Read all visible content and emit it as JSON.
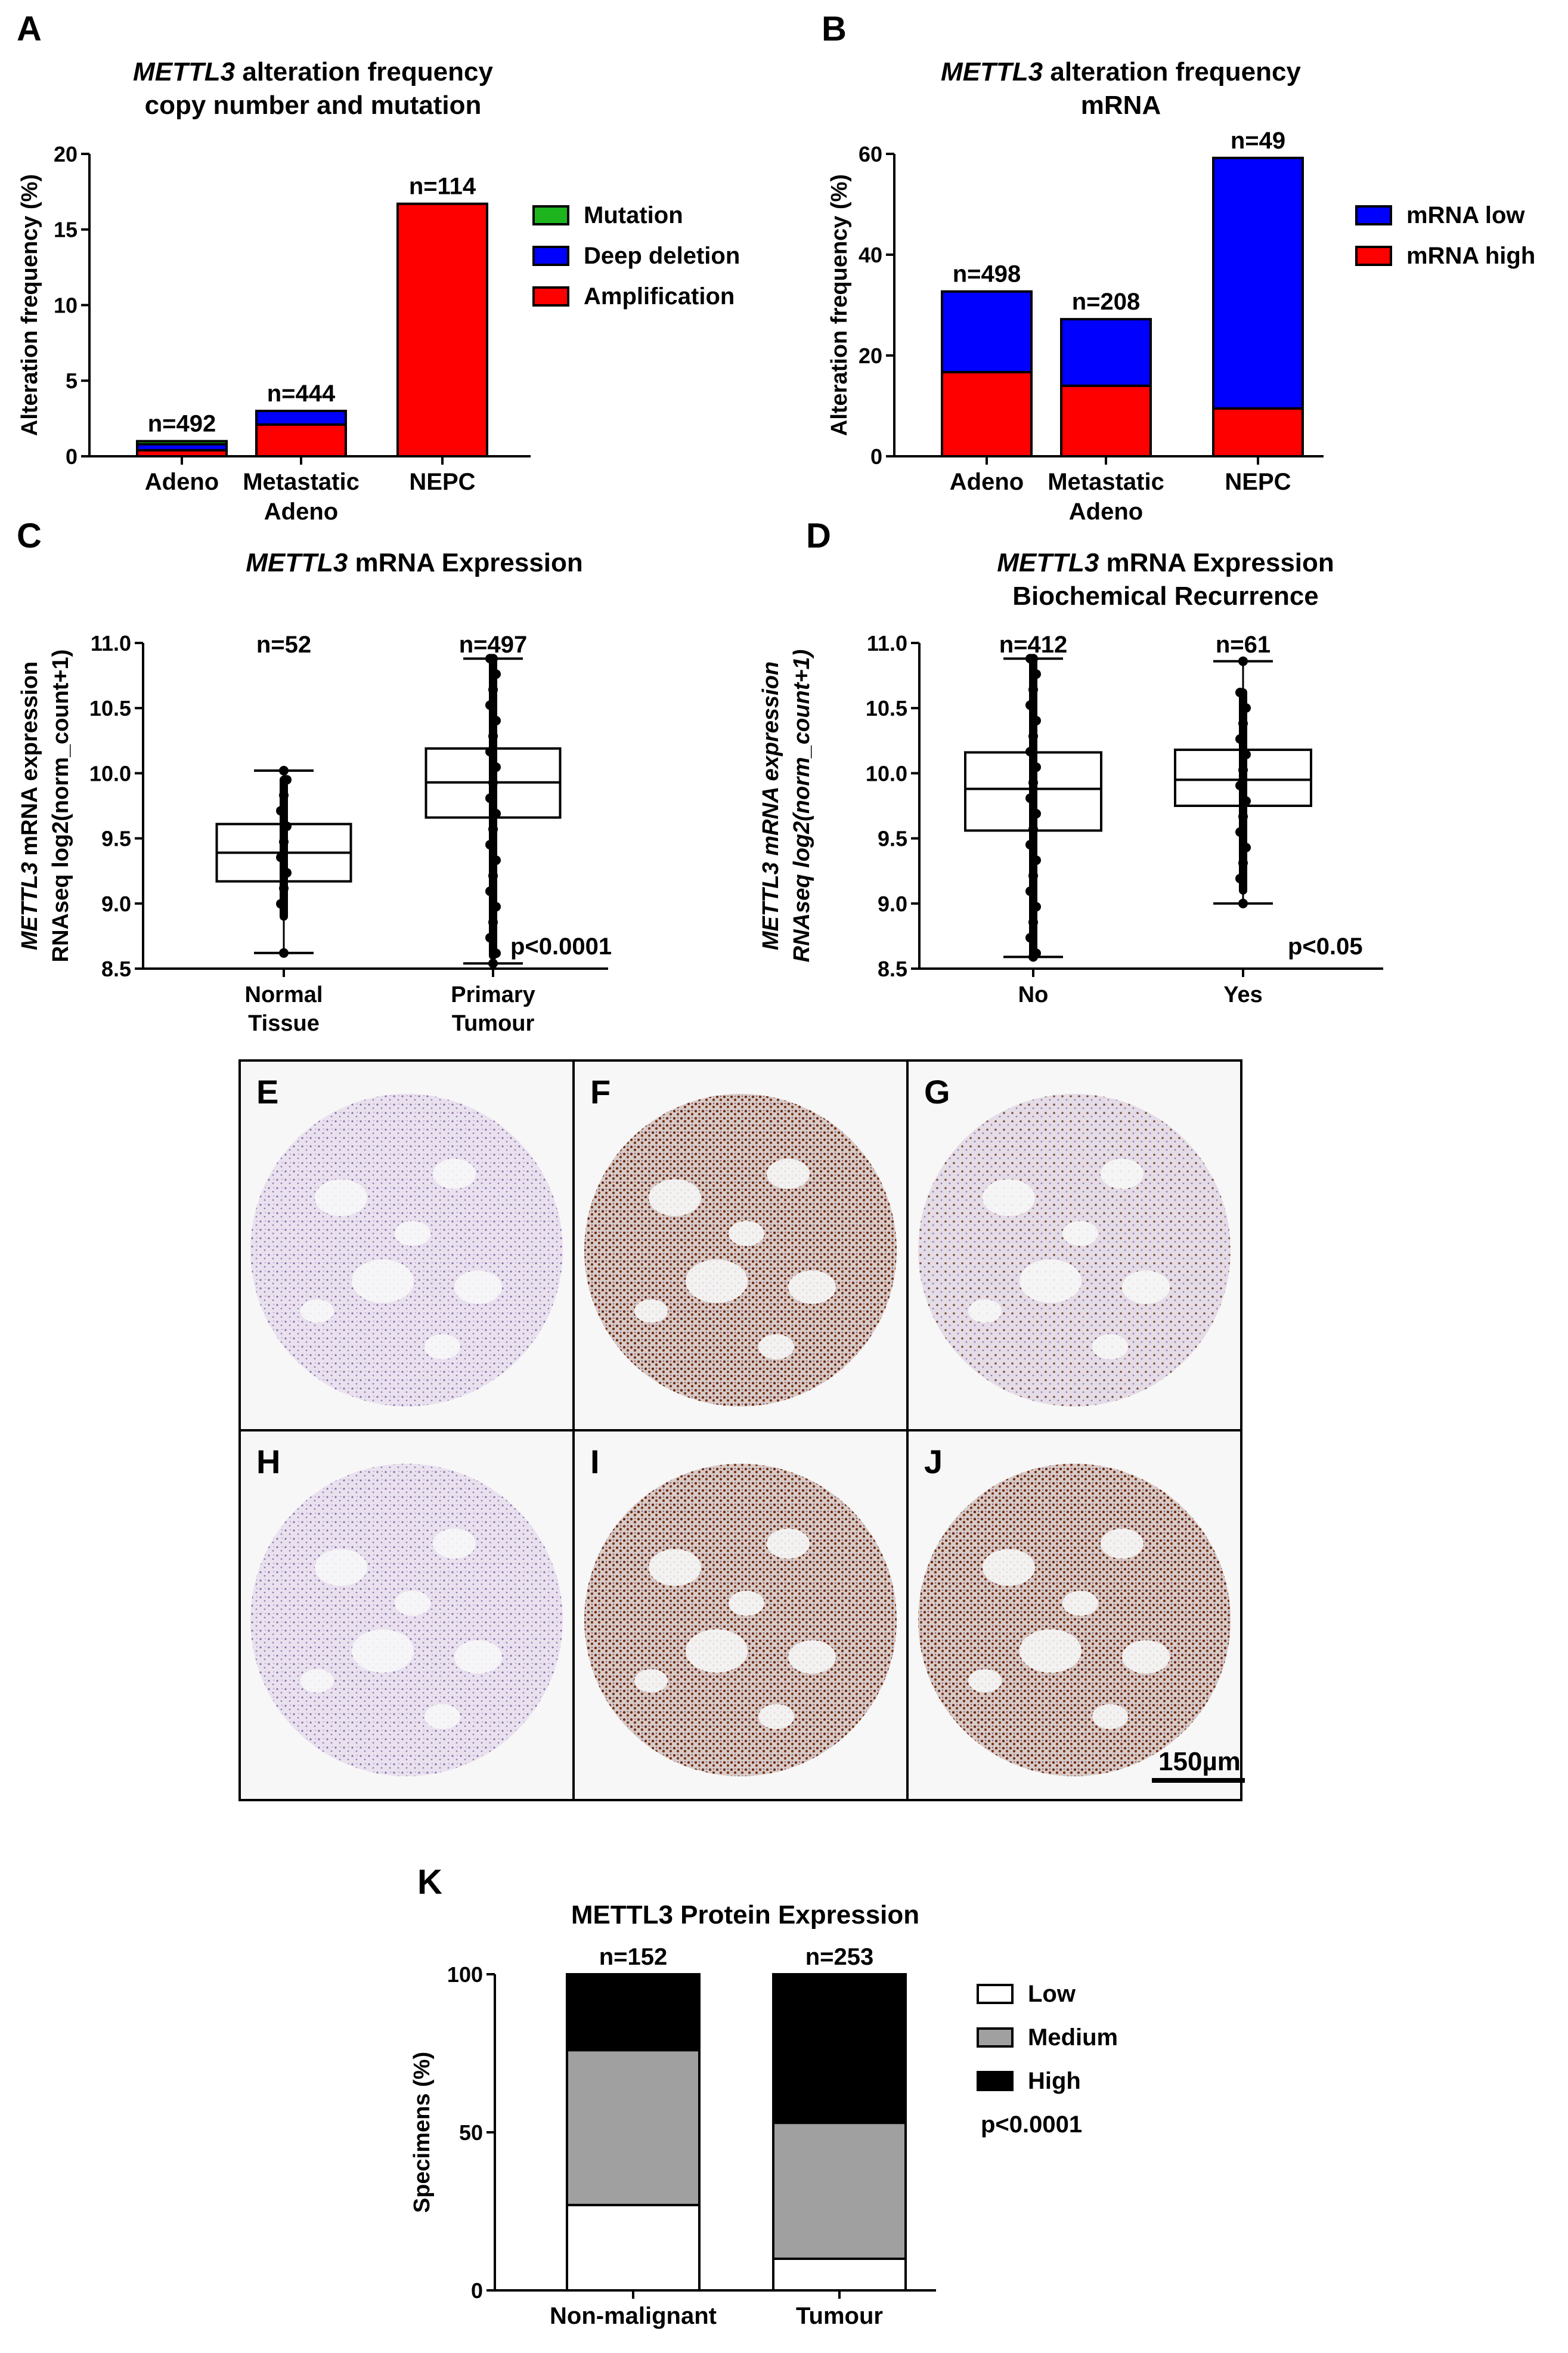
{
  "panels": {
    "A": "A",
    "B": "B",
    "C": "C",
    "D": "D",
    "E": "E",
    "F": "F",
    "G": "G",
    "H": "H",
    "I": "I",
    "J": "J",
    "K": "K"
  },
  "colors": {
    "mutation": "#1db41d",
    "deep_deletion": "#0000ff",
    "amplification": "#ff0000",
    "mrna_low": "#0000ff",
    "mrna_high": "#ff0000",
    "low": "#ffffff",
    "medium": "#a0a0a0",
    "high": "#000000"
  },
  "chart_data": [
    {
      "panel": "A",
      "type": "bar",
      "title_italic": "METTL3",
      "title_rest": " alteration frequency",
      "title_line2": "copy number and mutation",
      "ylabel": "Alteration frequency (%)",
      "ylim": [
        0,
        20
      ],
      "yticks": [
        "0",
        "5",
        "10",
        "15",
        "20"
      ],
      "categories": [
        [
          "Adeno"
        ],
        [
          "Metastatic",
          "Adeno"
        ],
        [
          "NEPC"
        ]
      ],
      "n_labels": [
        "n=492",
        "n=444",
        "n=114"
      ],
      "stacked": true,
      "series": [
        {
          "name": "Amplification",
          "color": "#ff0000",
          "values": [
            0.4,
            2.1,
            16.7
          ]
        },
        {
          "name": "Deep deletion",
          "color": "#0000ff",
          "values": [
            0.4,
            0.9,
            0
          ]
        },
        {
          "name": "Mutation",
          "color": "#1db41d",
          "values": [
            0.2,
            0,
            0
          ]
        }
      ],
      "legend": [
        "Mutation",
        "Deep deletion",
        "Amplification"
      ],
      "legend_colors": [
        "#1db41d",
        "#0000ff",
        "#ff0000"
      ]
    },
    {
      "panel": "B",
      "type": "bar",
      "title_italic": "METTL3",
      "title_rest": " alteration frequency",
      "title_line2": "mRNA",
      "ylabel": "Alteration frequency (%)",
      "ylim": [
        0,
        60
      ],
      "yticks": [
        "0",
        "20",
        "40",
        "60"
      ],
      "categories": [
        [
          "Adeno"
        ],
        [
          "Metastatic",
          "Adeno"
        ],
        [
          "NEPC"
        ]
      ],
      "n_labels": [
        "n=498",
        "n=208",
        "n=49"
      ],
      "stacked": true,
      "series": [
        {
          "name": "mRNA high",
          "color": "#ff0000",
          "values": [
            16.7,
            14.0,
            9.5
          ]
        },
        {
          "name": "mRNA low",
          "color": "#0000ff",
          "values": [
            16.0,
            13.2,
            49.7
          ]
        }
      ],
      "legend": [
        "mRNA low",
        "mRNA high"
      ],
      "legend_colors": [
        "#0000ff",
        "#ff0000"
      ]
    },
    {
      "panel": "C",
      "type": "box",
      "title_italic": "METTL3",
      "title_rest": " mRNA Expression",
      "ylabel_italic": "METTL3",
      "ylabel_rest": " mRNA expression",
      "ylabel_line2": "RNAseq log2(norm_count+1)",
      "ylim": [
        8.5,
        11.0
      ],
      "yticks": [
        "8.5",
        "9.0",
        "9.5",
        "10.0",
        "10.5",
        "11.0"
      ],
      "categories": [
        [
          "Normal",
          "Tissue"
        ],
        [
          "Primary",
          "Tumour"
        ]
      ],
      "n_labels": [
        "n=52",
        "n=497"
      ],
      "boxes": [
        {
          "min": 8.62,
          "q1": 9.17,
          "median": 9.39,
          "q3": 9.61,
          "max": 10.02,
          "dense_min": 8.9,
          "dense_max": 9.95
        },
        {
          "min": 8.54,
          "q1": 9.66,
          "median": 9.93,
          "q3": 10.19,
          "max": 10.88,
          "dense_min": 8.6,
          "dense_max": 10.88
        }
      ],
      "pvalue": "p<0.0001"
    },
    {
      "panel": "D",
      "type": "box",
      "title_italic": "METTL3",
      "title_rest": " mRNA Expression",
      "title_line2": "Biochemical Recurrence",
      "ylabel_italic": "METTL3 mRNA expression",
      "ylabel_rest": "",
      "ylabel_line2": "RNAseq log2(norm_count+1)",
      "ylabel_line2_italic": true,
      "ylim": [
        8.5,
        11.0
      ],
      "yticks": [
        "8.5",
        "9.0",
        "9.5",
        "10.0",
        "10.5",
        "11.0"
      ],
      "categories": [
        [
          "No"
        ],
        [
          "Yes"
        ]
      ],
      "n_labels": [
        "n=412",
        "n=61"
      ],
      "boxes": [
        {
          "min": 8.59,
          "q1": 9.56,
          "median": 9.88,
          "q3": 10.16,
          "max": 10.88,
          "dense_min": 8.6,
          "dense_max": 10.88
        },
        {
          "min": 9.0,
          "q1": 9.75,
          "median": 9.95,
          "q3": 10.18,
          "max": 10.86,
          "dense_min": 9.1,
          "dense_max": 10.62
        }
      ],
      "pvalue": "p<0.05"
    },
    {
      "panel": "K",
      "type": "bar",
      "title": "METTL3 Protein Expression",
      "ylabel": "Specimens (%)",
      "ylim": [
        0,
        100
      ],
      "yticks": [
        "0",
        "50",
        "100"
      ],
      "categories": [
        [
          "Non-malignant"
        ],
        [
          "Tumour"
        ]
      ],
      "n_labels": [
        "n=152",
        "n=253"
      ],
      "stacked": true,
      "series": [
        {
          "name": "Low",
          "color": "#ffffff",
          "values": [
            27,
            10
          ]
        },
        {
          "name": "Medium",
          "color": "#a0a0a0",
          "values": [
            49,
            43
          ]
        },
        {
          "name": "High",
          "color": "#000000",
          "values": [
            24,
            47
          ]
        }
      ],
      "legend": [
        "Low",
        "Medium",
        "High"
      ],
      "legend_colors": [
        "#ffffff",
        "#a0a0a0",
        "#000000"
      ],
      "pvalue": "p<0.0001"
    }
  ],
  "micrographs": {
    "scale_bar": "150µm",
    "labels": [
      "E",
      "F",
      "G",
      "H",
      "I",
      "J"
    ],
    "intensity": [
      "low",
      "high",
      "medium",
      "low",
      "high",
      "high"
    ]
  }
}
